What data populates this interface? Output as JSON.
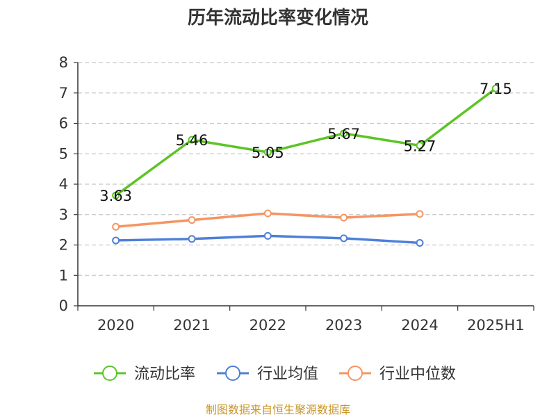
{
  "chart_data": {
    "type": "line",
    "title": "历年流动比率变化情况",
    "categories": [
      "2020",
      "2021",
      "2022",
      "2023",
      "2024",
      "2025H1"
    ],
    "ylim": [
      0,
      8
    ],
    "yticks": [
      0,
      1,
      2,
      3,
      4,
      5,
      6,
      7,
      8
    ],
    "grid": true,
    "legend_position": "bottom",
    "series": [
      {
        "name": "流动比率",
        "color": "#5cc426",
        "values": [
          3.63,
          5.46,
          5.05,
          5.67,
          5.27,
          7.15
        ],
        "labels": [
          "3.63",
          "5.46",
          "5.05",
          "5.67",
          "5.27",
          "7.15"
        ]
      },
      {
        "name": "行业均值",
        "color": "#4e7fd8",
        "values": [
          2.15,
          2.2,
          2.3,
          2.22,
          2.07,
          null
        ]
      },
      {
        "name": "行业中位数",
        "color": "#f59563",
        "values": [
          2.6,
          2.82,
          3.04,
          2.9,
          3.02,
          null
        ]
      }
    ],
    "source": "制图数据来自恒生聚源数据库"
  }
}
